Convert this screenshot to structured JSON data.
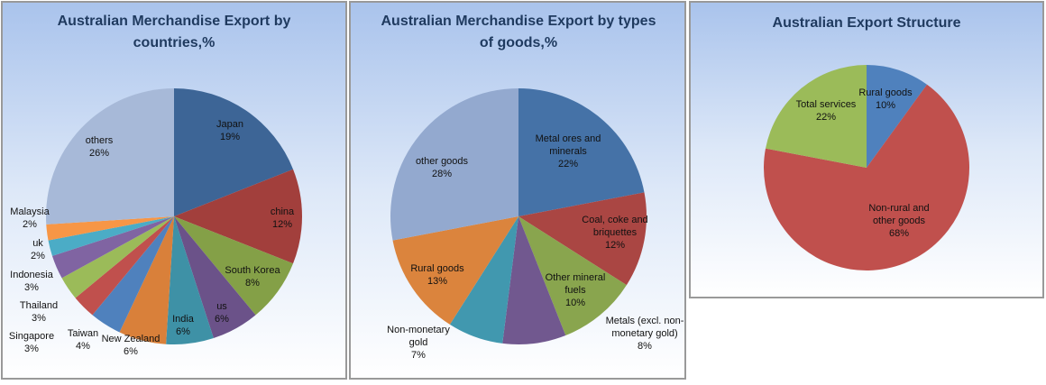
{
  "chart_data": [
    {
      "type": "pie",
      "title": "Australian Merchandise Export by countries,%",
      "categories": [
        "Japan",
        "china",
        "South Korea",
        "us",
        "India",
        "New Zealand",
        "Taiwan",
        "Singapore",
        "Thailand",
        "Indonesia",
        "uk",
        "Malaysia",
        "others"
      ],
      "values": [
        19,
        12,
        8,
        6,
        6,
        6,
        4,
        3,
        3,
        3,
        2,
        2,
        26
      ],
      "value_labels": [
        "19%",
        "12%",
        "8%",
        "6%",
        "6%",
        "6%",
        "4%",
        "3%",
        "3%",
        "3%",
        "2%",
        "2%",
        "26%"
      ],
      "colors": [
        "#3d6596",
        "#a23f3c",
        "#84a047",
        "#6b5289",
        "#3e91a6",
        "#d9803a",
        "#4f81bd",
        "#c0504d",
        "#9bbb59",
        "#8064a2",
        "#4bacc6",
        "#f79646",
        "#a7b9d8"
      ]
    },
    {
      "type": "pie",
      "title": "Australian Merchandise Export by types of goods,%",
      "categories": [
        "Metal ores and minerals",
        "Coal, coke and briquettes",
        "Other mineral fuels",
        "Metals (excl. non-monetary gold)",
        "Non-monetary gold",
        "Rural goods",
        "other goods"
      ],
      "values": [
        22,
        12,
        10,
        8,
        7,
        13,
        28
      ],
      "value_labels": [
        "22%",
        "12%",
        "10%",
        "8%",
        "7%",
        "13%",
        "28%"
      ],
      "colors": [
        "#4572a7",
        "#aa4643",
        "#89a54e",
        "#71588f",
        "#4198af",
        "#db843d",
        "#93a9cf"
      ]
    },
    {
      "type": "pie",
      "title": "Australian Export Structure",
      "categories": [
        "Rural goods",
        "Non-rural and other goods",
        "Total services"
      ],
      "values": [
        10,
        68,
        22
      ],
      "value_labels": [
        "10%",
        "68%",
        "22%"
      ],
      "colors": [
        "#4f81bd",
        "#c0504d",
        "#9bbb59"
      ]
    }
  ]
}
